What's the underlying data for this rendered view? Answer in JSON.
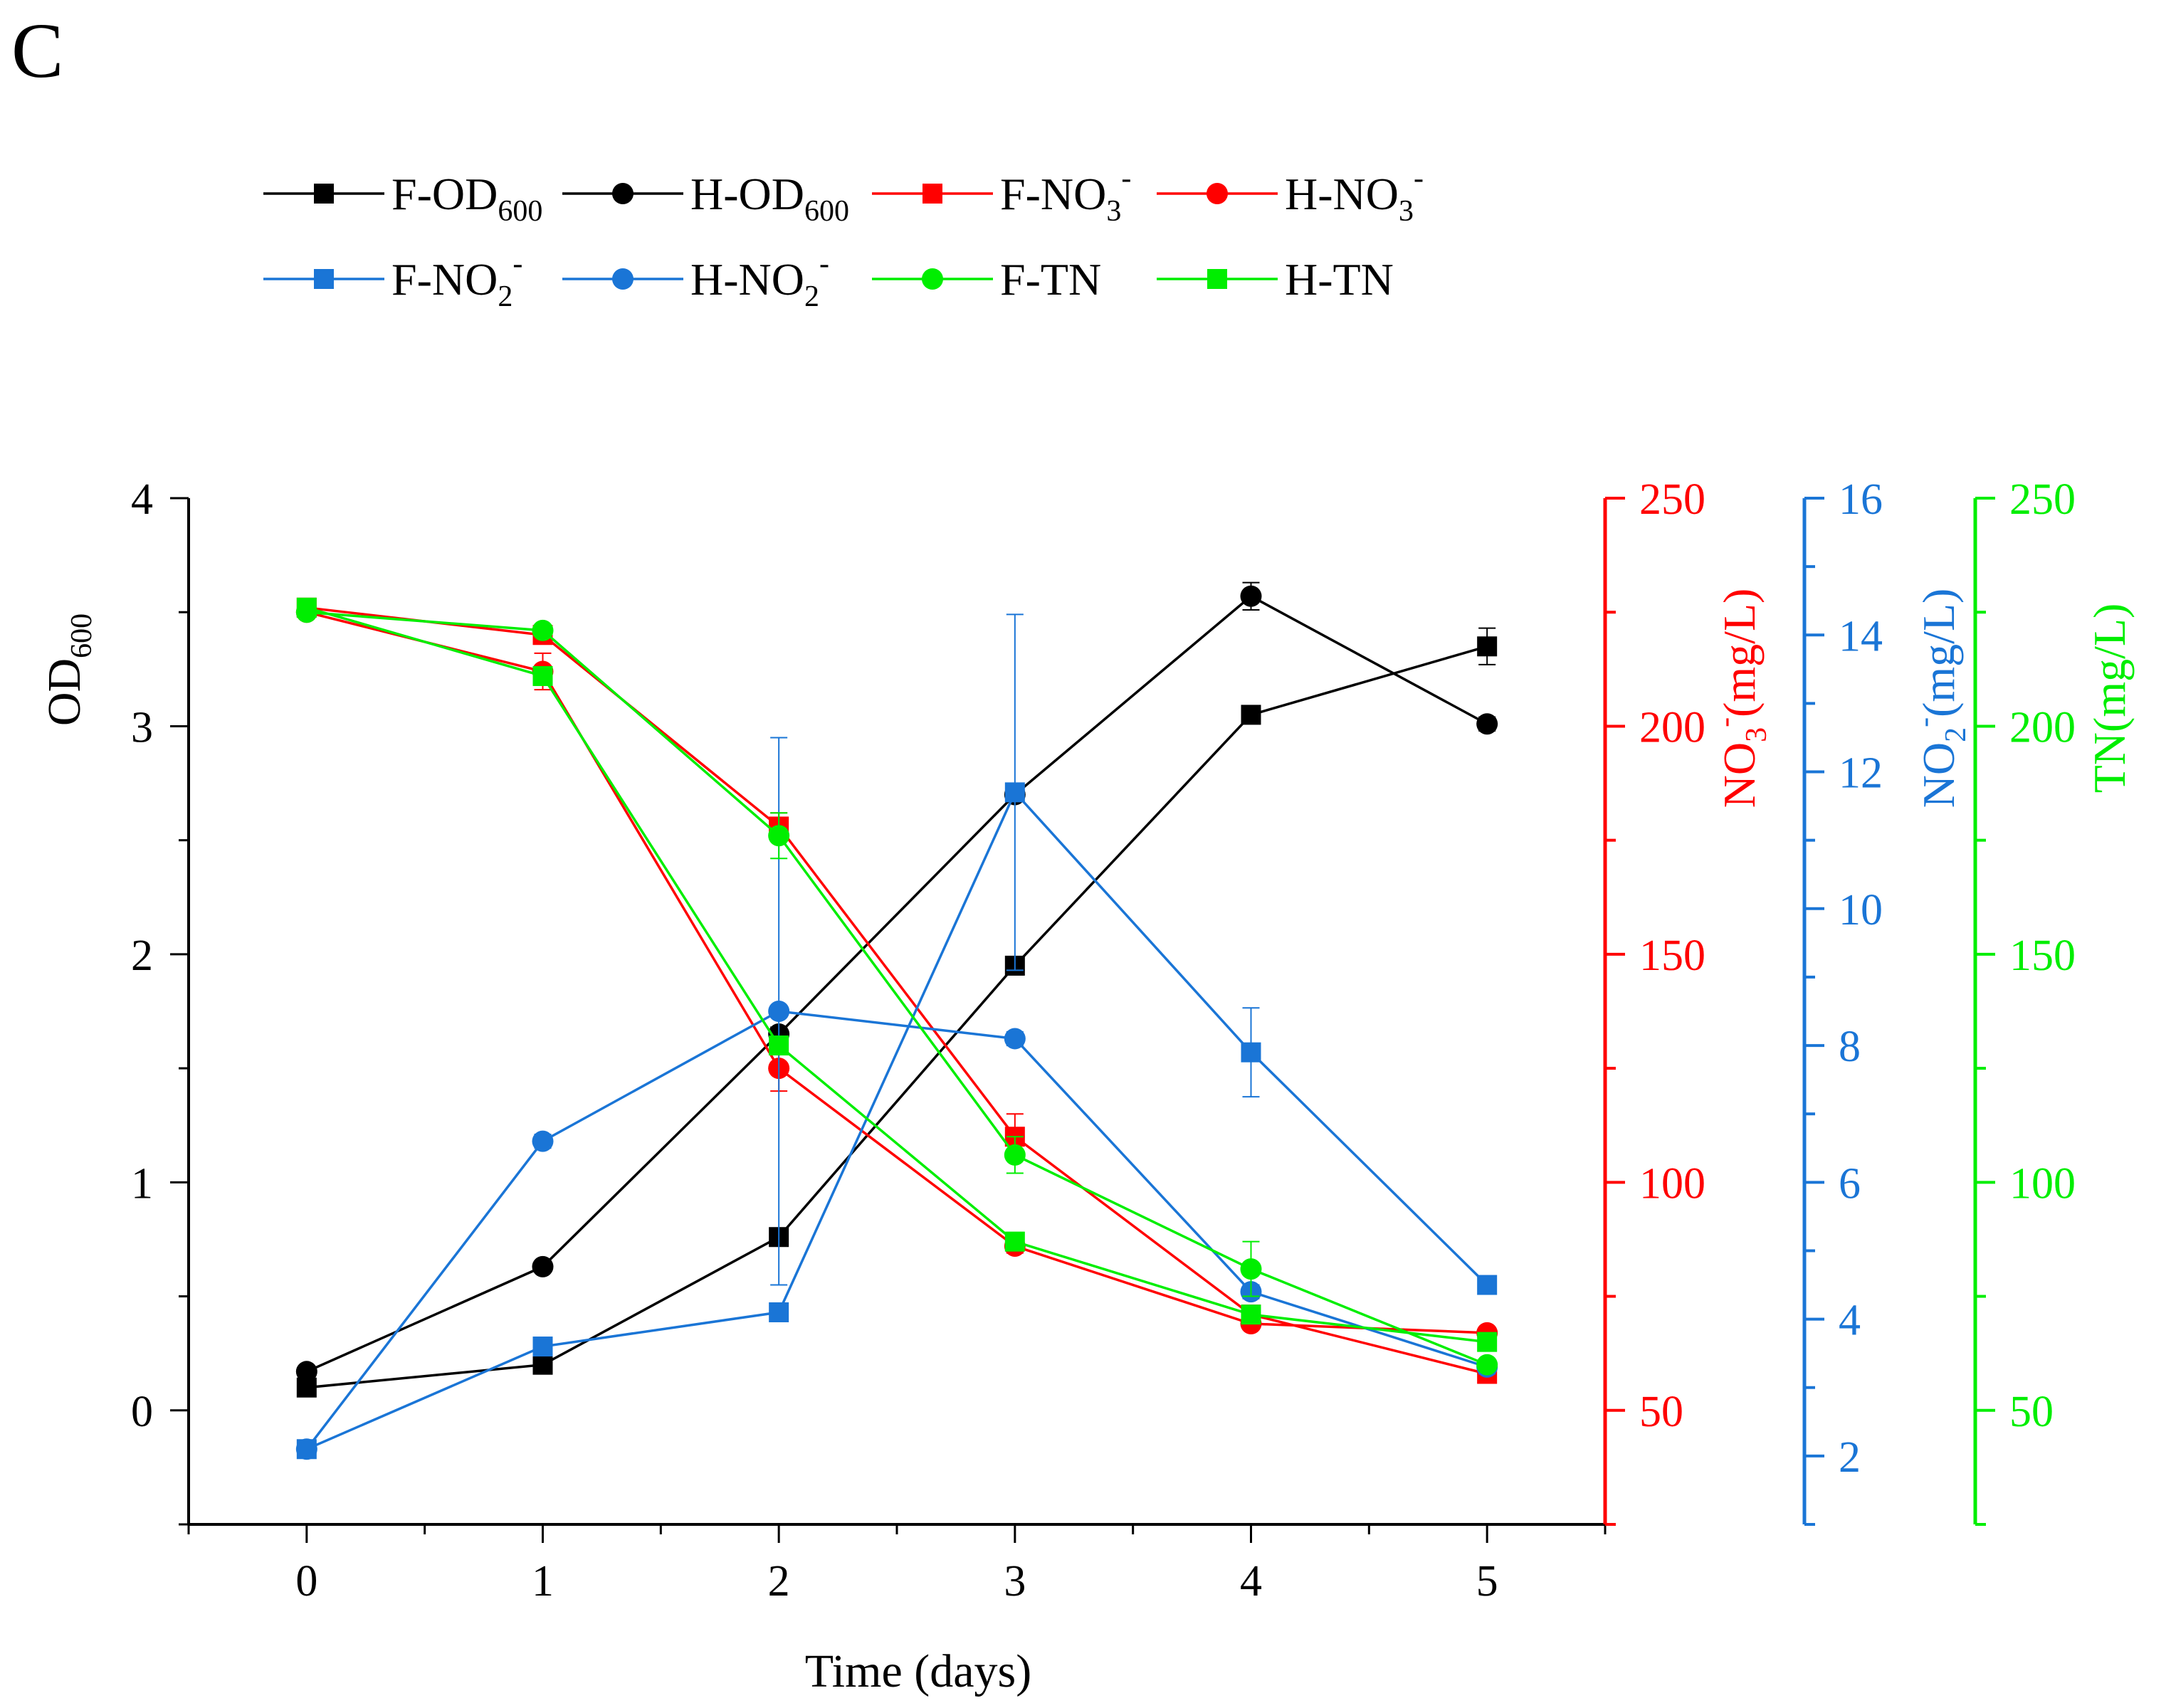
{
  "panel_label": "C",
  "chart_data": {
    "type": "line",
    "title": "",
    "xlabel": "Time (days)",
    "x": [
      0,
      1,
      2,
      3,
      4,
      5
    ],
    "xlim": [
      -0.5,
      5.5
    ],
    "xticks": [
      "0",
      "1",
      "2",
      "3",
      "4",
      "5"
    ],
    "axes": [
      {
        "id": "od",
        "side": "left",
        "color": "#000000",
        "label_main": "OD",
        "label_sub": "600",
        "ylim": [
          -0.5,
          4
        ],
        "ticks": [
          0,
          1,
          2,
          3,
          4
        ]
      },
      {
        "id": "no3",
        "side": "right",
        "color": "#ff0000",
        "label_pre": "NO",
        "label_sub": "3",
        "label_sup": "-",
        "label_post": "(mg/L)",
        "ylim": [
          25,
          250
        ],
        "ticks": [
          50,
          100,
          150,
          200,
          250
        ]
      },
      {
        "id": "no2",
        "side": "right",
        "color": "#1a75d6",
        "label_pre": "NO",
        "label_sub": "2",
        "label_sup": "-",
        "label_post": "(mg/L)",
        "ylim": [
          1,
          16
        ],
        "ticks": [
          2,
          4,
          6,
          8,
          10,
          12,
          14,
          16
        ]
      },
      {
        "id": "tn",
        "side": "right",
        "color": "#00ee00",
        "label_pre": "TN(mg/L)",
        "ylim": [
          25,
          250
        ],
        "ticks": [
          50,
          100,
          150,
          200,
          250
        ]
      }
    ],
    "series": [
      {
        "name": "F-OD600",
        "legend_main": "F-OD",
        "legend_sub": "600",
        "axis": "od",
        "color": "#000000",
        "marker": "square",
        "values": [
          0.1,
          0.2,
          0.76,
          1.95,
          3.05,
          3.35
        ],
        "errors": [
          0.02,
          0.03,
          0.03,
          0.04,
          0.03,
          0.08
        ]
      },
      {
        "name": "H-OD600",
        "legend_main": "H-OD",
        "legend_sub": "600",
        "axis": "od",
        "color": "#000000",
        "marker": "circle",
        "values": [
          0.17,
          0.63,
          1.65,
          2.7,
          3.57,
          3.01
        ],
        "errors": [
          0.02,
          0.02,
          0.03,
          0.03,
          0.06,
          0.03
        ]
      },
      {
        "name": "F-NO3-",
        "legend_main": "F-NO",
        "legend_sub": "3",
        "legend_sup": "-",
        "axis": "no3",
        "color": "#ff0000",
        "marker": "square",
        "values": [
          226,
          220,
          178,
          110,
          71,
          58
        ],
        "errors": [
          1,
          1.5,
          3,
          5,
          2,
          1
        ]
      },
      {
        "name": "H-NO3-",
        "legend_main": "H-NO",
        "legend_sub": "3",
        "legend_sup": "-",
        "axis": "no3",
        "color": "#ff0000",
        "marker": "circle",
        "values": [
          225,
          212,
          125,
          86,
          69,
          67
        ],
        "errors": [
          1,
          4,
          5,
          1.5,
          1,
          1
        ]
      },
      {
        "name": "F-NO2-",
        "legend_main": "F-NO",
        "legend_sub": "2",
        "legend_sup": "-",
        "axis": "no2",
        "color": "#1a75d6",
        "marker": "square",
        "values": [
          2.1,
          3.6,
          4.1,
          11.7,
          7.9,
          4.5
        ],
        "errors": [
          0.05,
          0.1,
          0.1,
          2.6,
          0.65,
          0.1
        ]
      },
      {
        "name": "H-NO2-",
        "legend_main": "H-NO",
        "legend_sub": "2",
        "legend_sup": "-",
        "axis": "no2",
        "color": "#1a75d6",
        "marker": "circle",
        "values": [
          2.1,
          6.6,
          8.5,
          8.1,
          4.4,
          3.3
        ],
        "errors": [
          0.05,
          0.1,
          4.0,
          0.1,
          0.1,
          0.1
        ]
      },
      {
        "name": "F-TN",
        "legend_main": "F-TN",
        "axis": "tn",
        "color": "#00ee00",
        "marker": "circle",
        "values": [
          225,
          221,
          176,
          106,
          81,
          60
        ],
        "errors": [
          1,
          1,
          5,
          4,
          6,
          1
        ]
      },
      {
        "name": "H-TN",
        "legend_main": "H-TN",
        "axis": "tn",
        "color": "#00ee00",
        "marker": "square",
        "values": [
          226,
          211,
          130,
          87,
          71,
          65
        ],
        "errors": [
          1,
          2,
          2,
          2,
          1,
          1
        ]
      }
    ]
  }
}
